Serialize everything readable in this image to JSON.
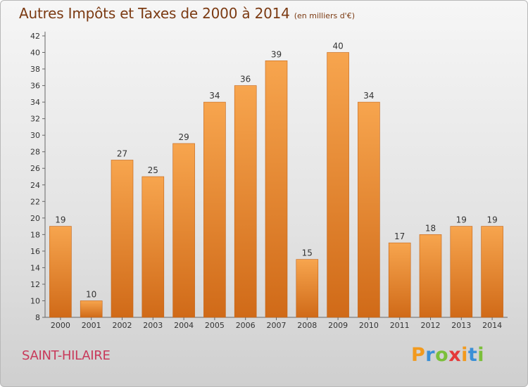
{
  "title": "Autres Impôts et Taxes de 2000 à 2014",
  "subtitle": "(en milliers d'€)",
  "commune": "SAINT-HILAIRE",
  "logo": {
    "text": "Proxiti",
    "colors": [
      "#f29a1e",
      "#3a8fd6",
      "#7bbf3a",
      "#e53a3a",
      "#f29a1e",
      "#3a8fd6",
      "#7bbf3a"
    ]
  },
  "colors": {
    "bar_light": "#f7a54e",
    "bar_dark": "#d06a18",
    "title": "#7b3a12",
    "commune": "#c8395a"
  },
  "chart_data": {
    "type": "bar",
    "categories": [
      "2000",
      "2001",
      "2002",
      "2003",
      "2004",
      "2005",
      "2006",
      "2007",
      "2008",
      "2009",
      "2010",
      "2011",
      "2012",
      "2013",
      "2014"
    ],
    "values": [
      19,
      10,
      27,
      25,
      29,
      34,
      36,
      39,
      15,
      40,
      34,
      17,
      18,
      19,
      19
    ],
    "data_labels": [
      "19",
      "10",
      "27",
      "25",
      "29",
      "34",
      "36",
      "39",
      "15",
      "40",
      "34",
      "17",
      "18",
      "19",
      "19"
    ],
    "title": "Autres Impôts et Taxes de 2000 à 2014",
    "xlabel": "",
    "ylabel": "",
    "ylim": [
      8,
      42
    ],
    "yticks": [
      8,
      10,
      12,
      14,
      16,
      18,
      20,
      22,
      24,
      26,
      28,
      30,
      32,
      34,
      36,
      38,
      40,
      42
    ],
    "grid": "none",
    "legend": "none"
  }
}
